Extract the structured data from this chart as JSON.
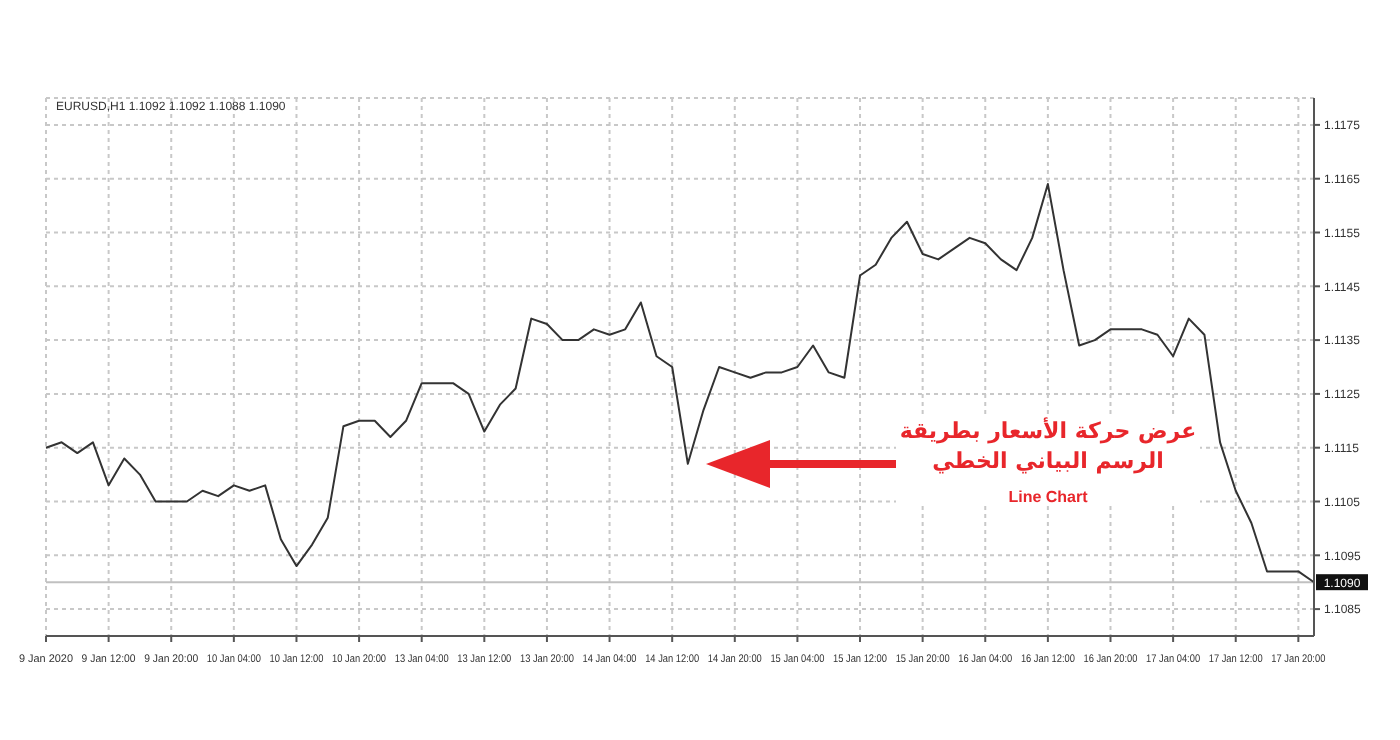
{
  "chart_data": {
    "type": "line",
    "title": "EURUSD,H1  1.1092 1.1092 1.1088 1.1090",
    "categories": [
      "9 Jan 2020",
      null,
      null,
      null,
      "9 Jan 12:00",
      null,
      null,
      null,
      "9 Jan 20:00",
      null,
      null,
      null,
      "10 Jan 04:00",
      null,
      null,
      null,
      "10 Jan 12:00",
      null,
      null,
      null,
      "10 Jan 20:00",
      null,
      null,
      null,
      "13 Jan 04:00",
      null,
      null,
      null,
      "13 Jan 12:00",
      null,
      null,
      null,
      "13 Jan 20:00",
      null,
      null,
      null,
      "14 Jan 04:00",
      null,
      null,
      null,
      "14 Jan 12:00",
      null,
      null,
      null,
      "14 Jan 20:00",
      null,
      null,
      null,
      "15 Jan 04:00",
      null,
      null,
      null,
      "15 Jan 12:00",
      null,
      null,
      null,
      "15 Jan 20:00",
      null,
      null,
      null,
      "16 Jan 04:00",
      null,
      null,
      null,
      "16 Jan 12:00",
      null,
      null,
      null,
      "16 Jan 20:00",
      null,
      null,
      null,
      "17 Jan 04:00",
      null,
      null,
      null,
      "17 Jan 12:00",
      null,
      null,
      null,
      "17 Jan 20:00",
      null
    ],
    "series": [
      {
        "color": "#333333",
        "values": [
          1.1115,
          1.1116,
          1.1114,
          1.1116,
          1.1108,
          1.1113,
          1.111,
          1.1105,
          1.1105,
          1.1105,
          1.1107,
          1.1106,
          1.1108,
          1.1107,
          1.1108,
          1.1098,
          1.1093,
          1.1097,
          1.1102,
          1.1119,
          1.112,
          1.112,
          1.1117,
          1.112,
          1.1127,
          1.1127,
          1.1127,
          1.1125,
          1.1118,
          1.1123,
          1.1126,
          1.1139,
          1.1138,
          1.1135,
          1.1135,
          1.1137,
          1.1136,
          1.1137,
          1.1142,
          1.1132,
          1.113,
          1.1112,
          1.1122,
          1.113,
          1.1129,
          1.1128,
          1.1129,
          1.1129,
          1.113,
          1.1134,
          1.1129,
          1.1128,
          1.1147,
          1.1149,
          1.1154,
          1.1157,
          1.1151,
          1.115,
          1.1152,
          1.1154,
          1.1153,
          1.115,
          1.1148,
          1.1154,
          1.1164,
          1.1148,
          1.1134,
          1.1135,
          1.1137,
          1.1137,
          1.1137,
          1.1136,
          1.1132,
          1.1139,
          1.1136,
          1.1116,
          1.1107,
          1.1101,
          1.1092,
          1.1092,
          1.1092,
          1.109
        ]
      }
    ],
    "ylim": [
      1.108,
      1.118
    ],
    "yticks": [
      1.1085,
      1.1095,
      1.1105,
      1.1115,
      1.1125,
      1.1135,
      1.1145,
      1.1155,
      1.1165,
      1.1175
    ],
    "grid": true,
    "marker": "none",
    "line_style": "solid",
    "ref_lines": [
      {
        "axis": "y",
        "value": 1.109,
        "label": "1.1090",
        "color": "#c0c0c0"
      }
    ],
    "annotations": [
      "عرض حركة الأسعار بطريقة",
      "الرسم البياني الخطي",
      "Line Chart"
    ]
  }
}
